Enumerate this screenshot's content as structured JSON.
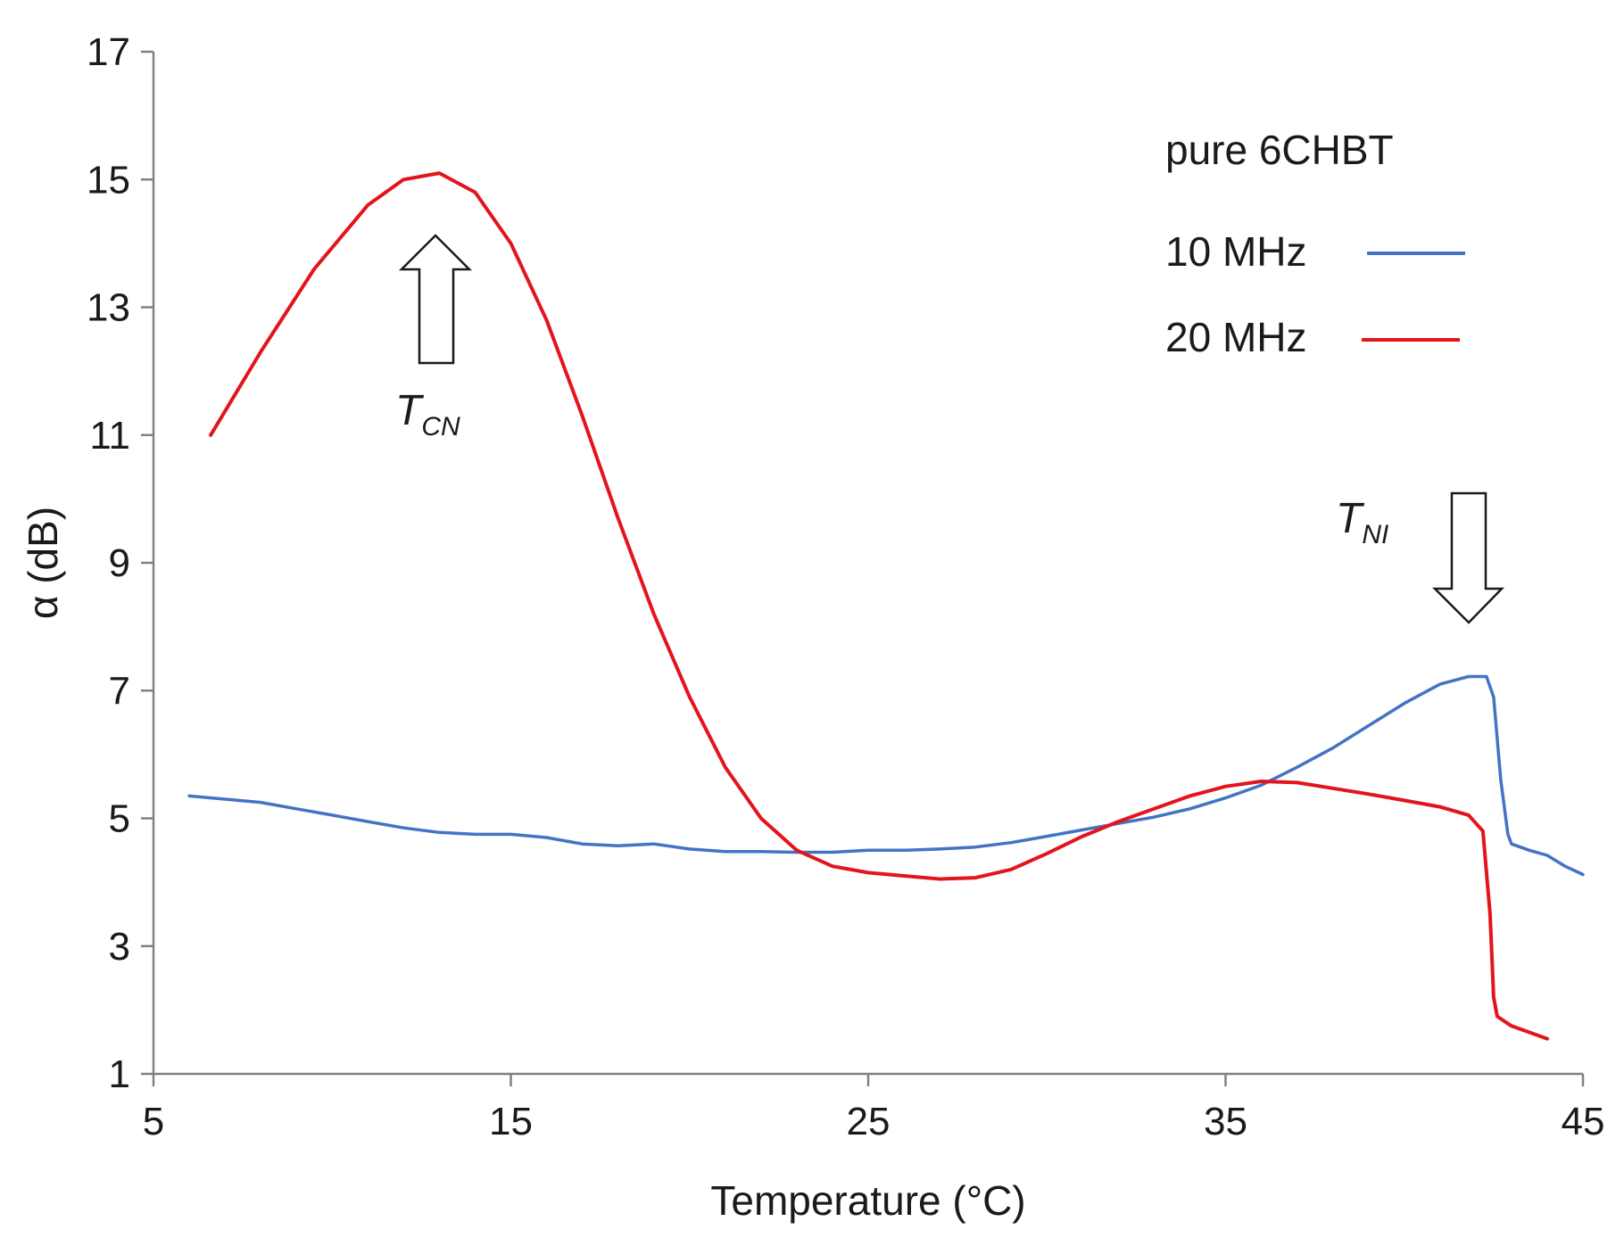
{
  "chart_data": {
    "type": "line",
    "title": "",
    "xlabel": "Temperature (°C)",
    "ylabel": "α (dB)",
    "xlim": [
      5,
      45
    ],
    "ylim": [
      1,
      17
    ],
    "xticks": [
      5,
      15,
      25,
      35,
      45
    ],
    "yticks": [
      1,
      3,
      5,
      7,
      9,
      11,
      13,
      15,
      17
    ],
    "grid": false,
    "legend": {
      "title": "pure 6CHBT",
      "placement": "top-right"
    },
    "series": [
      {
        "name": "10 MHz",
        "color": "#4472c4",
        "x": [
          6.0,
          7.0,
          8.0,
          9.0,
          10.0,
          11.0,
          12.0,
          13.0,
          14.0,
          15.0,
          16.0,
          17.0,
          18.0,
          19.0,
          20.0,
          21.0,
          22.0,
          23.0,
          24.0,
          25.0,
          26.0,
          27.0,
          28.0,
          29.0,
          30.0,
          31.0,
          32.0,
          33.0,
          34.0,
          35.0,
          36.0,
          37.0,
          38.0,
          39.0,
          40.0,
          41.0,
          41.8,
          42.3,
          42.5,
          42.7,
          42.9,
          43.0,
          43.5,
          44.0,
          44.5,
          45.0
        ],
        "y": [
          5.35,
          5.3,
          5.25,
          5.15,
          5.05,
          4.95,
          4.85,
          4.78,
          4.75,
          4.75,
          4.7,
          4.6,
          4.57,
          4.6,
          4.52,
          4.48,
          4.48,
          4.47,
          4.47,
          4.5,
          4.5,
          4.52,
          4.55,
          4.62,
          4.72,
          4.82,
          4.92,
          5.02,
          5.15,
          5.32,
          5.52,
          5.8,
          6.1,
          6.45,
          6.8,
          7.1,
          7.22,
          7.22,
          6.9,
          5.6,
          4.75,
          4.6,
          4.5,
          4.42,
          4.25,
          4.12
        ]
      },
      {
        "name": "20 MHz",
        "color": "#e3141c",
        "x": [
          6.6,
          8.0,
          9.5,
          11.0,
          12.0,
          13.0,
          14.0,
          15.0,
          16.0,
          17.0,
          18.0,
          19.0,
          20.0,
          21.0,
          22.0,
          23.0,
          24.0,
          25.0,
          26.0,
          27.0,
          28.0,
          29.0,
          30.0,
          31.0,
          32.0,
          33.0,
          34.0,
          35.0,
          36.0,
          37.0,
          38.0,
          39.0,
          40.0,
          41.0,
          41.8,
          42.2,
          42.4,
          42.5,
          42.6,
          43.0,
          43.5,
          44.0
        ],
        "y": [
          11.0,
          12.3,
          13.6,
          14.6,
          15.0,
          15.1,
          14.8,
          14.0,
          12.8,
          11.3,
          9.7,
          8.2,
          6.9,
          5.8,
          5.0,
          4.5,
          4.25,
          4.15,
          4.1,
          4.05,
          4.07,
          4.2,
          4.45,
          4.72,
          4.95,
          5.15,
          5.35,
          5.5,
          5.58,
          5.56,
          5.47,
          5.38,
          5.28,
          5.18,
          5.05,
          4.8,
          3.5,
          2.2,
          1.9,
          1.75,
          1.65,
          1.55
        ]
      }
    ],
    "annotations": [
      {
        "base": "T",
        "sub": "CN",
        "arrow": "up",
        "x": 13.0
      },
      {
        "base": "T",
        "sub": "NI",
        "arrow": "down",
        "x": 42.4
      }
    ]
  }
}
